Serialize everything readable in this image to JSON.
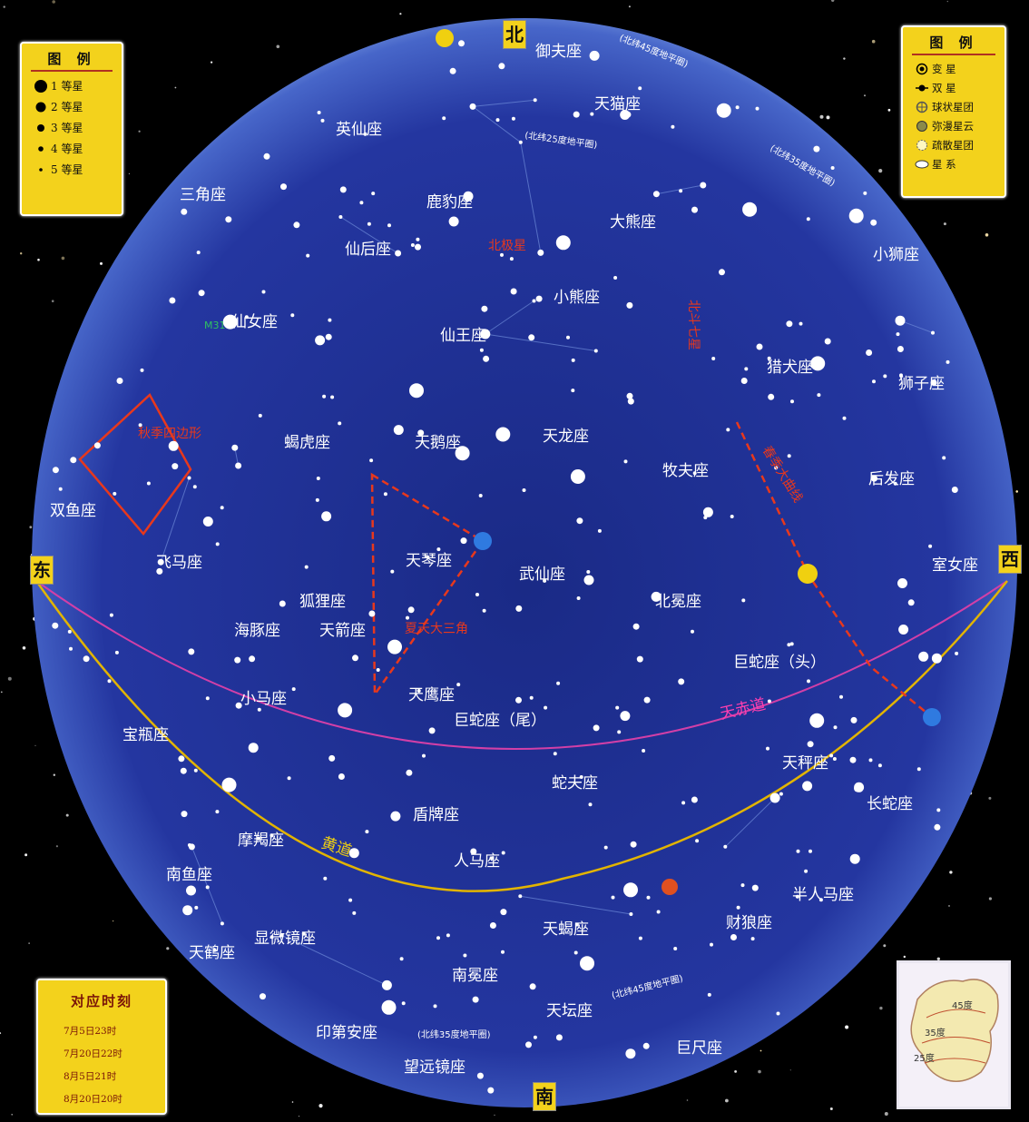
{
  "legend_magnitude": {
    "title": "图 例",
    "items": [
      {
        "label": "1 等星"
      },
      {
        "label": "2 等星"
      },
      {
        "label": "3 等星"
      },
      {
        "label": "4 等星"
      },
      {
        "label": "5 等星"
      }
    ]
  },
  "legend_objects": {
    "title": "图 例",
    "items": [
      {
        "label": "变 星",
        "icon": "variable-star-icon"
      },
      {
        "label": "双 星",
        "icon": "double-star-icon"
      },
      {
        "label": "球状星团",
        "icon": "globular-cluster-icon"
      },
      {
        "label": "弥漫星云",
        "icon": "diffuse-nebula-icon"
      },
      {
        "label": "疏散星团",
        "icon": "open-cluster-icon"
      },
      {
        "label": "星 系",
        "icon": "galaxy-icon"
      }
    ]
  },
  "legend_time": {
    "title": "对应时刻",
    "items": [
      "7月5日23时",
      "7月20日22时",
      "8月5日21时",
      "8月20日20时"
    ]
  },
  "cardinals": {
    "north": "北",
    "south": "南",
    "east": "东",
    "west": "西"
  },
  "constellations": [
    "御夫座",
    "天猫座",
    "英仙座",
    "鹿豹座",
    "大熊座",
    "三角座",
    "仙后座",
    "小狮座",
    "小熊座",
    "仙女座",
    "仙王座",
    "猎犬座",
    "狮子座",
    "蝎虎座",
    "天鹅座",
    "天龙座",
    "牧夫座",
    "后发座",
    "双鱼座",
    "飞马座",
    "天琴座",
    "武仙座",
    "室女座",
    "狐狸座",
    "北冕座",
    "海豚座",
    "天箭座",
    "巨蛇座（头）",
    "小马座",
    "天鹰座",
    "巨蛇座（尾）",
    "宝瓶座",
    "天秤座",
    "蛇夫座",
    "盾牌座",
    "长蛇座",
    "摩羯座",
    "人马座",
    "南鱼座",
    "半人马座",
    "天蝎座",
    "财狼座",
    "天鹤座",
    "显微镜座",
    "南冕座",
    "天坛座",
    "印第安座",
    "巨尺座",
    "望远镜座"
  ],
  "red_labels": [
    "北极星",
    "北斗七星",
    "秋季四边形",
    "夏天大三角",
    "春季大曲线"
  ],
  "green_labels": [
    "M31"
  ],
  "lines": {
    "celestial_equator": "天赤道",
    "ecliptic": "黄道"
  },
  "horizon_labels": [
    "(北纬45度地平圈)",
    "(北纬25度地平圈)",
    "(北纬35度地平圈)",
    "(北纬45度地平圈)",
    "(北纬35度地平圈)"
  ],
  "inset_map": {
    "labels": [
      "45度",
      "35度",
      "25度"
    ]
  },
  "colors": {
    "sky": "#1f2f8c",
    "legend": "#f3d21c",
    "equator": "#d23fa7",
    "ecliptic": "#e2b400",
    "guide_line": "#e8381c"
  }
}
